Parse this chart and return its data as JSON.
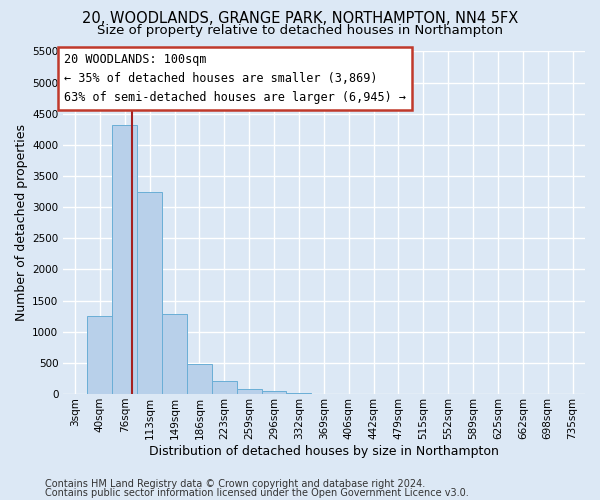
{
  "title": "20, WOODLANDS, GRANGE PARK, NORTHAMPTON, NN4 5FX",
  "subtitle": "Size of property relative to detached houses in Northampton",
  "xlabel": "Distribution of detached houses by size in Northampton",
  "ylabel": "Number of detached properties",
  "footer_line1": "Contains HM Land Registry data © Crown copyright and database right 2024.",
  "footer_line2": "Contains public sector information licensed under the Open Government Licence v3.0.",
  "categories": [
    "3sqm",
    "40sqm",
    "76sqm",
    "113sqm",
    "149sqm",
    "186sqm",
    "223sqm",
    "259sqm",
    "296sqm",
    "332sqm",
    "369sqm",
    "406sqm",
    "442sqm",
    "479sqm",
    "515sqm",
    "552sqm",
    "589sqm",
    "625sqm",
    "662sqm",
    "698sqm",
    "735sqm"
  ],
  "values": [
    0,
    1260,
    4320,
    3250,
    1280,
    480,
    210,
    75,
    50,
    20,
    5,
    0,
    0,
    0,
    0,
    0,
    0,
    0,
    0,
    0,
    0
  ],
  "bar_color": "#b8d0ea",
  "bar_edge_color": "#6aaed6",
  "property_line_x": 2.3,
  "property_line_color": "#a52020",
  "annotation_text": "20 WOODLANDS: 100sqm\n← 35% of detached houses are smaller (3,869)\n63% of semi-detached houses are larger (6,945) →",
  "annotation_box_facecolor": "white",
  "annotation_box_edgecolor": "#c0392b",
  "ylim_max": 5500,
  "yticks": [
    0,
    500,
    1000,
    1500,
    2000,
    2500,
    3000,
    3500,
    4000,
    4500,
    5000,
    5500
  ],
  "bg_color": "#dce8f5",
  "grid_color": "white",
  "title_fontsize": 10.5,
  "subtitle_fontsize": 9.5,
  "axis_label_fontsize": 9,
  "tick_fontsize": 7.5,
  "footer_fontsize": 7,
  "ann_fontsize": 8.5
}
